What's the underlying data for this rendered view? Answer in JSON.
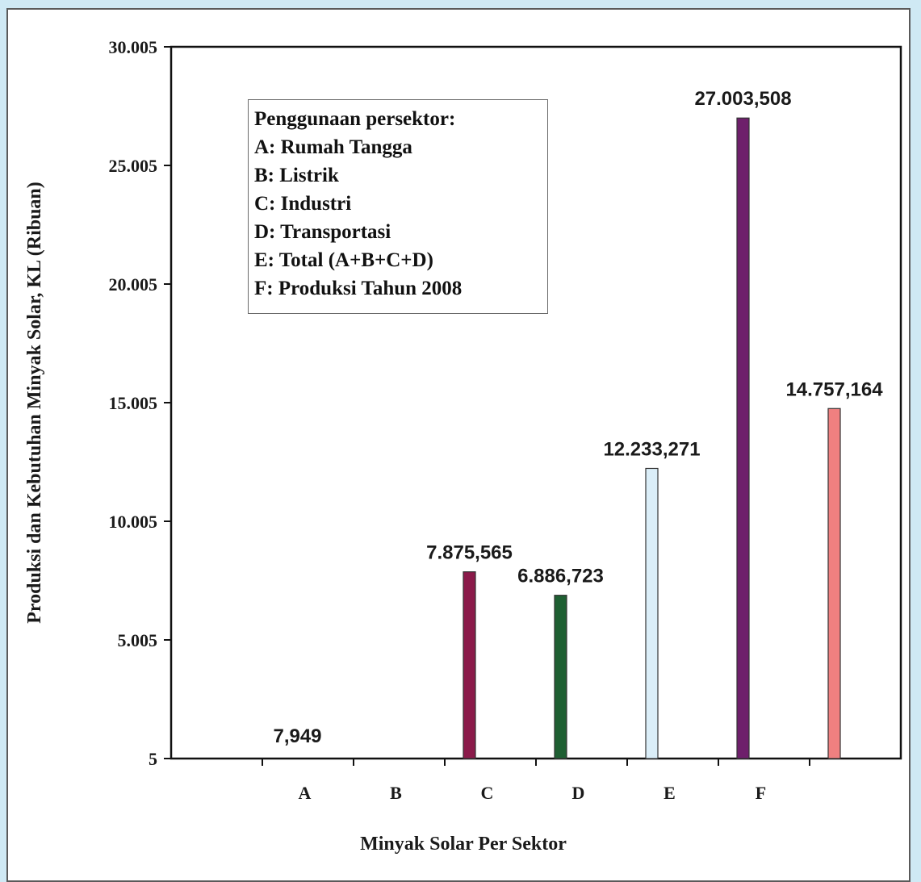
{
  "chart_data": {
    "type": "bar",
    "categories": [
      "A",
      "B",
      "C",
      "D",
      "E",
      "F"
    ],
    "values": [
      7.949,
      7875.565,
      6886.723,
      12233.271,
      27003.508,
      14757.164
    ],
    "data_labels": [
      "7,949",
      "7.875,565",
      "6.886,723",
      "12.233,271",
      "27.003,508",
      "14.757,164"
    ],
    "colors": [
      "#8b1a4a",
      "#8b1a4a",
      "#1e5f32",
      "#dbeef8",
      "#6e1f6b",
      "#f08080"
    ],
    "ylim": [
      5,
      30005
    ],
    "yticks": [
      5,
      5005,
      10005,
      15005,
      20005,
      25005,
      30005
    ],
    "ytick_labels": [
      "5",
      "5.005",
      "10.005",
      "15.005",
      "20.005",
      "25.005",
      "30.005"
    ],
    "xlabel": "Minyak Solar Per Sektor",
    "ylabel": "Produksi dan Kebutuhan Minyak Solar, KL (Ribuan)",
    "legend": {
      "placement": "top-left",
      "title": "Penggunaan persektor:",
      "entries": [
        "A: Rumah Tangga",
        "B: Listrik",
        "C: Industri",
        "D: Transportasi",
        "E: Total (A+B+C+D)",
        "F: Produksi Tahun 2008"
      ]
    },
    "grid": false
  }
}
